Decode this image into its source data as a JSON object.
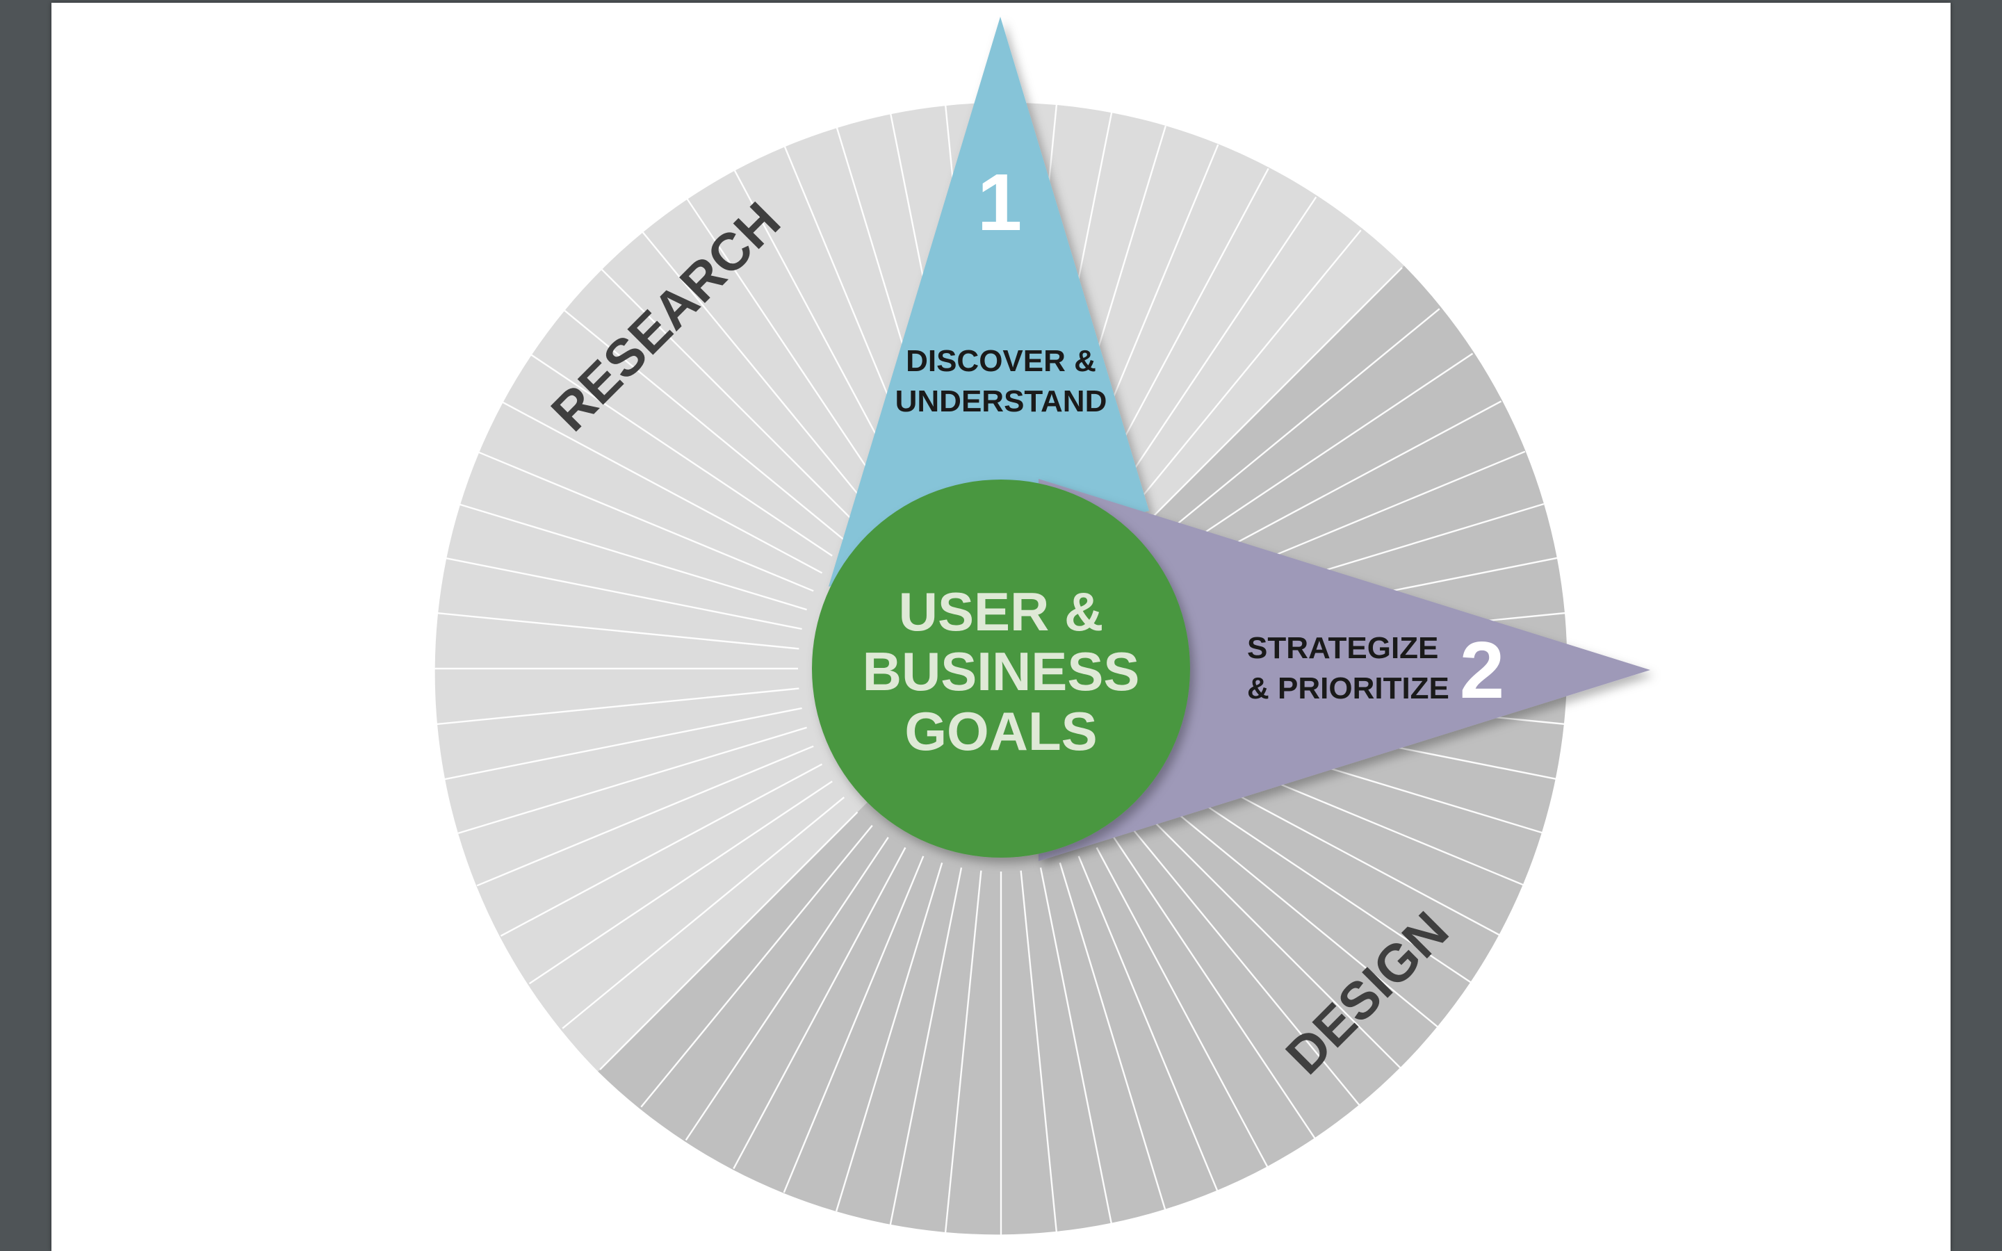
{
  "diagram": {
    "center": {
      "lines": [
        "USER &",
        "BUSINESS",
        "GOALS"
      ]
    },
    "wedges": [
      {
        "number": "1",
        "lines": [
          "DISCOVER &",
          "UNDERSTAND"
        ]
      },
      {
        "number": "2",
        "lines": [
          "STRATEGIZE",
          "& PRIORITIZE"
        ]
      }
    ],
    "ring_labels": {
      "research": "RESEARCH",
      "design": "DESIGN"
    }
  },
  "colors": {
    "viewer_background": "#4f5457",
    "page_background": "#ffffff",
    "ring_research": "#dcdcdc",
    "ring_design": "#bfbfbf",
    "spoke": "#ffffff",
    "center_green": "#4a9741",
    "center_text": "#dfe9d6",
    "wedge_discover": "#86c4d8",
    "wedge_strategize": "#9e99b8",
    "ring_label_text": "#3f3f3f",
    "wedge_text": "#1a1a1a"
  }
}
